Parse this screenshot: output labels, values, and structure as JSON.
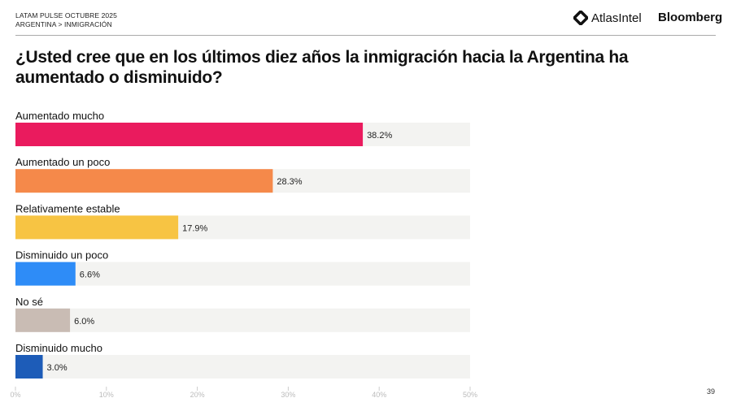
{
  "header": {
    "line1": "LATAM PULSE OCTUBRE 2025",
    "line2": "ARGENTINA > INMIGRACIÓN",
    "logo_atlas": "AtlasIntel",
    "logo_bloomberg": "Bloomberg"
  },
  "page_number": "39",
  "chart_data": {
    "type": "bar",
    "orientation": "horizontal",
    "title": "¿Usted cree que en los últimos diez años la inmigración hacia la Argentina ha aumentado o disminuido?",
    "categories": [
      "Aumentado mucho",
      "Aumentado un poco",
      "Relativamente estable",
      "Disminuido un poco",
      "No sé",
      "Disminuido mucho"
    ],
    "values": [
      38.2,
      28.3,
      17.9,
      6.6,
      6.0,
      3.0
    ],
    "data_labels": [
      "38.2%",
      "28.3%",
      "17.9%",
      "6.6%",
      "6.0%",
      "3.0%"
    ],
    "colors": [
      "#EA1B5E",
      "#F5894A",
      "#F7C443",
      "#2E8CF7",
      "#C9BCB4",
      "#1D5CB8"
    ],
    "track_color": "#F3F3F1",
    "xlim": [
      0,
      50
    ],
    "ticks": [
      0,
      10,
      20,
      30,
      40,
      50
    ],
    "tick_labels": [
      "0%",
      "10%",
      "20%",
      "30%",
      "40%",
      "50%"
    ],
    "grid": false
  }
}
